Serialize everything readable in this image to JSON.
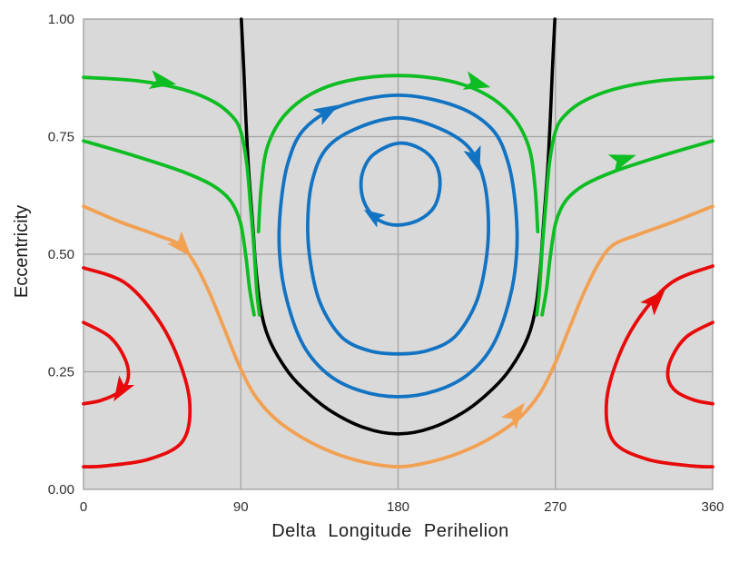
{
  "chart_data": {
    "type": "line",
    "title": "",
    "xlabel": "Delta Longitude Perihelion",
    "ylabel": "Eccentricity",
    "xlim": [
      0,
      360
    ],
    "ylim": [
      0,
      1
    ],
    "xticks": [
      0,
      90,
      180,
      270,
      360
    ],
    "xtick_labels": [
      "0",
      "90",
      "180",
      "270",
      "360"
    ],
    "yticks": [
      0,
      0.25,
      0.5,
      0.75,
      1
    ],
    "ytick_labels": [
      "0.00",
      "0.25",
      "0.50",
      "0.75",
      "1.00"
    ],
    "grid": true,
    "legend": false,
    "plot_bg_color": "#d9d9d9",
    "grid_color": "#a3a3a3",
    "colors": {
      "black": "#000000",
      "green": "#0dbd22",
      "blue": "#1273c2",
      "orange": "#f2a051",
      "red": "#e80a0a"
    },
    "series": [
      {
        "name": "separatrix-black",
        "color": "black",
        "width": 3.6,
        "closed": false,
        "points": [
          [
            90.3,
            1.0
          ],
          [
            91.8,
            0.886
          ],
          [
            92.9,
            0.79
          ],
          [
            94.4,
            0.683
          ],
          [
            97.0,
            0.554
          ],
          [
            98.6,
            0.471
          ],
          [
            101.2,
            0.388
          ],
          [
            105.9,
            0.322
          ],
          [
            115.3,
            0.259
          ],
          [
            125.2,
            0.216
          ],
          [
            140.9,
            0.168
          ],
          [
            160.7,
            0.131
          ],
          [
            180,
            0.118
          ],
          [
            199.3,
            0.131
          ],
          [
            219.1,
            0.168
          ],
          [
            234.8,
            0.216
          ],
          [
            244.7,
            0.259
          ],
          [
            254.1,
            0.322
          ],
          [
            258.8,
            0.388
          ],
          [
            261.4,
            0.471
          ],
          [
            263.0,
            0.554
          ],
          [
            265.6,
            0.683
          ],
          [
            267.1,
            0.79
          ],
          [
            268.2,
            0.886
          ],
          [
            269.7,
            1.0
          ]
        ]
      },
      {
        "name": "orange-circulating",
        "color": "orange",
        "width": 3.8,
        "closed": false,
        "points": [
          [
            0,
            0.602
          ],
          [
            20.8,
            0.569
          ],
          [
            41.6,
            0.541
          ],
          [
            55.6,
            0.519
          ],
          [
            63.9,
            0.479
          ],
          [
            72.2,
            0.417
          ],
          [
            80.5,
            0.342
          ],
          [
            88.8,
            0.266
          ],
          [
            97.1,
            0.205
          ],
          [
            108.6,
            0.154
          ],
          [
            124.2,
            0.112
          ],
          [
            142.3,
            0.079
          ],
          [
            160.5,
            0.058
          ],
          [
            180,
            0.048
          ],
          [
            197.9,
            0.058
          ],
          [
            216.1,
            0.079
          ],
          [
            234.3,
            0.112
          ],
          [
            249.9,
            0.154
          ],
          [
            261.3,
            0.205
          ],
          [
            269.6,
            0.266
          ],
          [
            277.9,
            0.342
          ],
          [
            286.2,
            0.417
          ],
          [
            294.5,
            0.479
          ],
          [
            302.8,
            0.519
          ],
          [
            316.8,
            0.541
          ],
          [
            337.6,
            0.569
          ],
          [
            360,
            0.602
          ]
        ]
      },
      {
        "name": "red-island-left-outer",
        "color": "red",
        "width": 3.8,
        "closed": false,
        "points": [
          [
            0,
            0.471
          ],
          [
            23.4,
            0.44
          ],
          [
            41.6,
            0.367
          ],
          [
            54.0,
            0.28
          ],
          [
            60.8,
            0.183
          ],
          [
            56.6,
            0.102
          ],
          [
            37.4,
            0.064
          ],
          [
            12.5,
            0.05
          ],
          [
            0,
            0.048
          ]
        ]
      },
      {
        "name": "red-island-left-inner",
        "color": "red",
        "width": 3.8,
        "closed": false,
        "points": [
          [
            0,
            0.355
          ],
          [
            15.1,
            0.324
          ],
          [
            23.9,
            0.276
          ],
          [
            25.5,
            0.236
          ],
          [
            20.8,
            0.208
          ],
          [
            9.9,
            0.189
          ],
          [
            0,
            0.182
          ]
        ]
      },
      {
        "name": "red-island-right-outer",
        "color": "red",
        "width": 3.8,
        "closed": false,
        "points": [
          [
            360,
            0.475
          ],
          [
            336.6,
            0.44
          ],
          [
            318.4,
            0.367
          ],
          [
            305.9,
            0.28
          ],
          [
            299.2,
            0.183
          ],
          [
            303.3,
            0.102
          ],
          [
            322.5,
            0.064
          ],
          [
            347.5,
            0.05
          ],
          [
            360,
            0.048
          ]
        ]
      },
      {
        "name": "red-island-right-inner",
        "color": "red",
        "width": 3.8,
        "closed": false,
        "points": [
          [
            360,
            0.355
          ],
          [
            344.9,
            0.324
          ],
          [
            336.1,
            0.276
          ],
          [
            334.5,
            0.236
          ],
          [
            339.2,
            0.208
          ],
          [
            350.1,
            0.189
          ],
          [
            360,
            0.182
          ]
        ]
      },
      {
        "name": "blue-libration-outer",
        "color": "blue",
        "width": 3.8,
        "closed": true,
        "points": [
          [
            180,
            0.838
          ],
          [
            212.9,
            0.815
          ],
          [
            233.7,
            0.766
          ],
          [
            243.1,
            0.693
          ],
          [
            247.3,
            0.597
          ],
          [
            247.8,
            0.5
          ],
          [
            243.7,
            0.403
          ],
          [
            234.3,
            0.307
          ],
          [
            220.2,
            0.245
          ],
          [
            201.9,
            0.21
          ],
          [
            180,
            0.197
          ],
          [
            158.1,
            0.21
          ],
          [
            139.8,
            0.245
          ],
          [
            125.7,
            0.307
          ],
          [
            116.3,
            0.403
          ],
          [
            112.2,
            0.5
          ],
          [
            112.7,
            0.597
          ],
          [
            116.9,
            0.693
          ],
          [
            126.3,
            0.766
          ],
          [
            147.1,
            0.815
          ]
        ]
      },
      {
        "name": "blue-libration-middle",
        "color": "blue",
        "width": 3.8,
        "closed": true,
        "points": [
          [
            180,
            0.79
          ],
          [
            203.5,
            0.768
          ],
          [
            220.7,
            0.726
          ],
          [
            229.0,
            0.658
          ],
          [
            231.7,
            0.568
          ],
          [
            230.1,
            0.481
          ],
          [
            224.3,
            0.394
          ],
          [
            212.3,
            0.324
          ],
          [
            196.7,
            0.295
          ],
          [
            180,
            0.288
          ],
          [
            163.3,
            0.295
          ],
          [
            147.7,
            0.324
          ],
          [
            135.7,
            0.394
          ],
          [
            129.9,
            0.481
          ],
          [
            128.3,
            0.568
          ],
          [
            131.0,
            0.658
          ],
          [
            139.3,
            0.726
          ],
          [
            156.5,
            0.768
          ]
        ]
      },
      {
        "name": "blue-libration-inner",
        "color": "blue",
        "width": 3.8,
        "closed": true,
        "points": [
          [
            180,
            0.736
          ],
          [
            193.0,
            0.724
          ],
          [
            201.4,
            0.693
          ],
          [
            204.0,
            0.649
          ],
          [
            200.9,
            0.602
          ],
          [
            192.0,
            0.573
          ],
          [
            180,
            0.562
          ],
          [
            169.6,
            0.571
          ],
          [
            162.8,
            0.595
          ],
          [
            159.1,
            0.631
          ],
          [
            159.7,
            0.674
          ],
          [
            165.9,
            0.712
          ]
        ]
      },
      {
        "name": "green-upper-left",
        "color": "green",
        "width": 3.8,
        "closed": false,
        "points": [
          [
            0,
            0.876
          ],
          [
            30.3,
            0.869
          ],
          [
            56.3,
            0.851
          ],
          [
            74.6,
            0.824
          ],
          [
            85.6,
            0.791
          ],
          [
            90.3,
            0.757
          ],
          [
            93.4,
            0.693
          ],
          [
            95.5,
            0.606
          ],
          [
            97.6,
            0.51
          ],
          [
            99.1,
            0.423
          ],
          [
            100.7,
            0.371
          ]
        ]
      },
      {
        "name": "green-lower-left",
        "color": "green",
        "width": 3.8,
        "closed": false,
        "points": [
          [
            0,
            0.741
          ],
          [
            30.3,
            0.708
          ],
          [
            56.3,
            0.676
          ],
          [
            73.6,
            0.647
          ],
          [
            84.0,
            0.614
          ],
          [
            89.7,
            0.568
          ],
          [
            92.9,
            0.496
          ],
          [
            95.0,
            0.427
          ],
          [
            97.6,
            0.371
          ]
        ]
      },
      {
        "name": "green-dome",
        "color": "green",
        "width": 3.8,
        "closed": false,
        "points": [
          [
            100.1,
            0.548
          ],
          [
            101.7,
            0.645
          ],
          [
            105.2,
            0.728
          ],
          [
            114.3,
            0.792
          ],
          [
            129.9,
            0.84
          ],
          [
            151.3,
            0.869
          ],
          [
            180,
            0.88
          ],
          [
            208.7,
            0.869
          ],
          [
            230.1,
            0.84
          ],
          [
            245.7,
            0.792
          ],
          [
            254.8,
            0.728
          ],
          [
            258.3,
            0.645
          ],
          [
            259.9,
            0.548
          ]
        ]
      },
      {
        "name": "green-upper-right",
        "color": "green",
        "width": 3.8,
        "closed": false,
        "points": [
          [
            259.3,
            0.371
          ],
          [
            260.9,
            0.423
          ],
          [
            262.4,
            0.51
          ],
          [
            264.5,
            0.606
          ],
          [
            266.6,
            0.693
          ],
          [
            269.7,
            0.757
          ],
          [
            274.4,
            0.791
          ],
          [
            285.4,
            0.824
          ],
          [
            303.7,
            0.851
          ],
          [
            329.7,
            0.869
          ],
          [
            360,
            0.876
          ]
        ]
      },
      {
        "name": "green-lower-right",
        "color": "green",
        "width": 3.8,
        "closed": false,
        "points": [
          [
            262.4,
            0.371
          ],
          [
            265.0,
            0.427
          ],
          [
            267.1,
            0.496
          ],
          [
            270.3,
            0.568
          ],
          [
            276.0,
            0.614
          ],
          [
            286.4,
            0.647
          ],
          [
            303.7,
            0.676
          ],
          [
            329.7,
            0.708
          ],
          [
            360,
            0.741
          ]
        ]
      }
    ],
    "arrows": [
      {
        "name": "green-upper-left-arrow",
        "x": 44.9,
        "e": 0.867,
        "angle": 10,
        "color": "green",
        "scale": 1.0
      },
      {
        "name": "green-dome-arrow",
        "x": 224.9,
        "e": 0.863,
        "angle": 15,
        "color": "green",
        "scale": 1.0
      },
      {
        "name": "green-lower-right-arrow",
        "x": 308.3,
        "e": 0.701,
        "angle": -19,
        "color": "green",
        "scale": 1.0
      },
      {
        "name": "orange-left-arrow",
        "x": 56.3,
        "e": 0.517,
        "angle": 49,
        "color": "orange",
        "scale": 1.0
      },
      {
        "name": "orange-right-arrow",
        "x": 247.3,
        "e": 0.16,
        "angle": -52,
        "color": "orange",
        "scale": 1.0
      },
      {
        "name": "red-left-arrow",
        "x": 21.4,
        "e": 0.212,
        "angle": 122,
        "color": "red",
        "scale": 0.95
      },
      {
        "name": "red-right-arrow",
        "x": 327.1,
        "e": 0.402,
        "angle": -47,
        "color": "red",
        "scale": 1.0
      },
      {
        "name": "blue-outer-arrow",
        "x": 139.3,
        "e": 0.803,
        "angle": -30,
        "color": "blue",
        "scale": 0.95
      },
      {
        "name": "blue-middle-arrow",
        "x": 224.3,
        "e": 0.703,
        "angle": 72,
        "color": "blue",
        "scale": 0.95
      },
      {
        "name": "blue-inner-arrow",
        "x": 165.9,
        "e": 0.581,
        "angle": 214,
        "color": "blue",
        "scale": 0.8
      }
    ]
  }
}
